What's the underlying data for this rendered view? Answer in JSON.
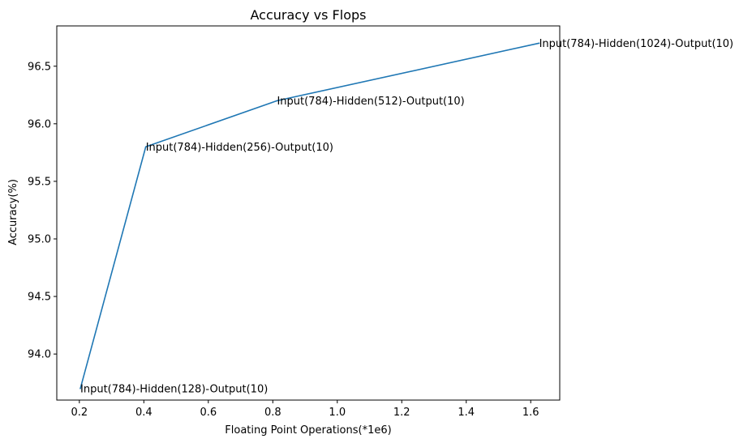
{
  "chart_data": {
    "type": "line",
    "title": "Accuracy vs Flops",
    "xlabel": "Floating Point Operations(*1e6)",
    "ylabel": "Accuracy(%)",
    "xlim": [
      0.13,
      1.69
    ],
    "ylim": [
      93.6,
      96.85
    ],
    "xticks": [
      0.2,
      0.4,
      0.6,
      0.8,
      1.0,
      1.2,
      1.4,
      1.6
    ],
    "yticks": [
      94.0,
      94.5,
      95.0,
      95.5,
      96.0,
      96.5
    ],
    "xtick_labels": [
      "0.2",
      "0.4",
      "0.6",
      "0.8",
      "1.0",
      "1.2",
      "1.4",
      "1.6"
    ],
    "ytick_labels": [
      "94.0",
      "94.5",
      "95.0",
      "95.5",
      "96.0",
      "96.5"
    ],
    "grid": false,
    "series": [
      {
        "color": "#1f77b4",
        "x": [
          0.203,
          0.406,
          0.813,
          1.626
        ],
        "y": [
          93.7,
          95.8,
          96.2,
          96.7
        ]
      }
    ],
    "annotations": [
      "Input(784)-Hidden(128)-Output(10)",
      "Input(784)-Hidden(256)-Output(10)",
      "Input(784)-Hidden(512)-Output(10)",
      "Input(784)-Hidden(1024)-Output(10)"
    ]
  }
}
